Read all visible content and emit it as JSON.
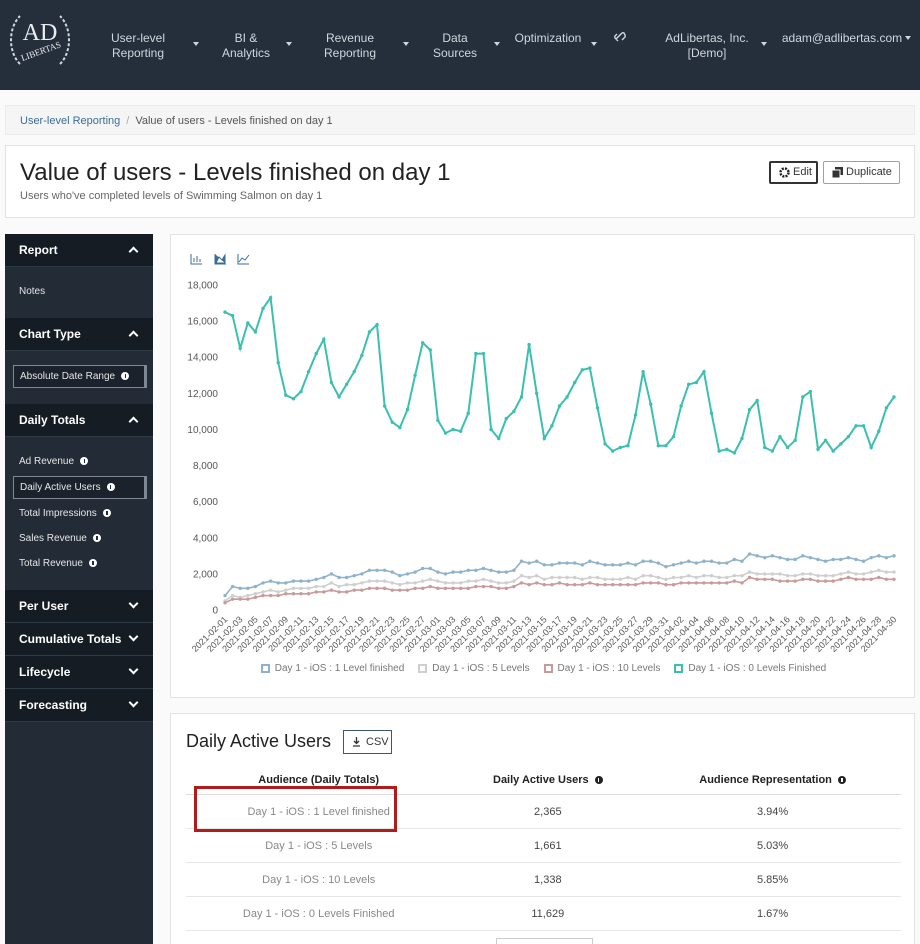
{
  "nav": {
    "logo": [
      "AD",
      "LIBERTAS"
    ],
    "items": [
      "User-level Reporting",
      "BI & Analytics",
      "Revenue Reporting",
      "Data Sources",
      "Optimization"
    ],
    "account": "AdLibertas, Inc. [Demo]",
    "user": "adam@adlibertas.com"
  },
  "breadcrumb": [
    "User-level Reporting",
    "Value of users - Levels finished on day 1"
  ],
  "header": {
    "title": "Value of users - Levels finished on day 1",
    "subtitle": "Users who've completed levels of Swimming Salmon on day 1",
    "buttons": [
      "Edit",
      "Duplicate"
    ]
  },
  "sidebar": [
    {
      "title": "Report",
      "items": [
        "Notes"
      ]
    },
    {
      "title": "Chart Type",
      "items": [
        "Absolute Date Range"
      ],
      "active": 0
    },
    {
      "title": "Daily Totals",
      "items": [
        "Ad Revenue",
        "Daily Active Users",
        "Total Impressions",
        "Sales Revenue",
        "Total Revenue"
      ],
      "active": 1
    },
    {
      "title": "Per User"
    },
    {
      "title": "Cumulative Totals"
    },
    {
      "title": "Lifecycle"
    },
    {
      "title": "Forecasting"
    }
  ],
  "chart_data": {
    "type": "line",
    "categories": [
      "2021-02-01",
      null,
      "2021-02-03",
      null,
      "2021-02-05",
      null,
      "2021-02-07",
      null,
      "2021-02-09",
      null,
      "2021-02-11",
      null,
      "2021-02-13",
      null,
      "2021-02-15",
      null,
      "2021-02-17",
      null,
      "2021-02-19",
      null,
      "2021-02-21",
      null,
      "2021-02-23",
      null,
      "2021-02-25",
      null,
      "2021-02-27",
      null,
      "2021-03-01",
      null,
      "2021-03-03",
      null,
      "2021-03-05",
      null,
      "2021-03-07",
      null,
      "2021-03-09",
      null,
      "2021-03-11",
      null,
      "2021-03-13",
      null,
      "2021-03-15",
      null,
      "2021-03-17",
      null,
      "2021-03-19",
      null,
      "2021-03-21",
      null,
      "2021-03-23",
      null,
      "2021-03-25",
      null,
      "2021-03-27",
      null,
      "2021-03-29",
      null,
      "2021-03-31",
      null,
      "2021-04-02",
      null,
      "2021-04-04",
      null,
      "2021-04-06",
      null,
      "2021-04-08",
      null,
      "2021-04-10",
      null,
      "2021-04-12",
      null,
      "2021-04-14",
      null,
      "2021-04-16",
      null,
      "2021-04-18",
      null,
      "2021-04-20",
      null,
      "2021-04-22",
      null,
      "2021-04-24",
      null,
      "2021-04-26",
      null,
      "2021-04-28",
      null,
      "2021-04-30"
    ],
    "series": [
      {
        "name": "Day 1 - iOS : 1 Level finished",
        "color": "#8fb2cc",
        "values": [
          800,
          1300,
          1200,
          1200,
          1300,
          1500,
          1600,
          1500,
          1500,
          1600,
          1600,
          1600,
          1700,
          1800,
          2000,
          1800,
          1800,
          1900,
          2000,
          2200,
          2200,
          2200,
          2100,
          1900,
          2000,
          2100,
          2300,
          2300,
          2100,
          2000,
          2100,
          2100,
          2200,
          2200,
          2300,
          2200,
          2100,
          2100,
          2200,
          2700,
          2600,
          2700,
          2500,
          2500,
          2600,
          2600,
          2600,
          2500,
          2700,
          2600,
          2500,
          2500,
          2500,
          2600,
          2500,
          2700,
          2700,
          2600,
          2400,
          2500,
          2600,
          2700,
          2600,
          2700,
          2700,
          2600,
          2600,
          2800,
          2700,
          3100,
          3000,
          2900,
          3000,
          2900,
          2800,
          2800,
          3000,
          2900,
          2800,
          2700,
          2800,
          2800,
          2900,
          2800,
          2700,
          2900,
          3000,
          2900,
          3000
        ]
      },
      {
        "name": "Day 1 - iOS : 5 Levels",
        "color": "#cfcfcf",
        "values": [
          500,
          800,
          700,
          800,
          900,
          1000,
          1100,
          1000,
          1100,
          1200,
          1200,
          1200,
          1300,
          1300,
          1500,
          1300,
          1400,
          1400,
          1500,
          1600,
          1600,
          1600,
          1500,
          1400,
          1500,
          1500,
          1600,
          1700,
          1600,
          1500,
          1500,
          1500,
          1600,
          1600,
          1700,
          1600,
          1500,
          1500,
          1600,
          1900,
          1800,
          1900,
          1700,
          1800,
          1800,
          1800,
          1800,
          1700,
          1800,
          1800,
          1700,
          1700,
          1700,
          1800,
          1700,
          1900,
          1900,
          1800,
          1700,
          1800,
          1800,
          1900,
          1800,
          1900,
          1900,
          1800,
          1800,
          1900,
          1900,
          2100,
          2000,
          2000,
          2000,
          2000,
          1900,
          1900,
          2000,
          2000,
          1900,
          1900,
          1900,
          2000,
          2100,
          2000,
          2000,
          2100,
          2200,
          2100,
          2100
        ]
      },
      {
        "name": "Day 1 - iOS : 10 Levels",
        "color": "#c99a9a",
        "values": [
          400,
          600,
          600,
          600,
          700,
          800,
          800,
          800,
          900,
          900,
          900,
          900,
          1000,
          1000,
          1100,
          1000,
          1000,
          1100,
          1100,
          1200,
          1200,
          1200,
          1100,
          1100,
          1100,
          1200,
          1200,
          1300,
          1200,
          1200,
          1200,
          1200,
          1200,
          1300,
          1300,
          1300,
          1200,
          1200,
          1300,
          1500,
          1400,
          1500,
          1400,
          1400,
          1500,
          1400,
          1400,
          1400,
          1500,
          1400,
          1400,
          1400,
          1400,
          1400,
          1400,
          1500,
          1500,
          1500,
          1400,
          1400,
          1500,
          1500,
          1500,
          1500,
          1500,
          1500,
          1500,
          1600,
          1500,
          1800,
          1700,
          1700,
          1700,
          1600,
          1600,
          1600,
          1700,
          1700,
          1600,
          1600,
          1600,
          1700,
          1800,
          1700,
          1700,
          1700,
          1800,
          1700,
          1700
        ]
      },
      {
        "name": "Day 1 - iOS : 0 Levels Finished",
        "color": "#3bbfb0",
        "values": [
          16500,
          16300,
          14500,
          15900,
          15400,
          16700,
          17300,
          13700,
          11900,
          11700,
          12100,
          13200,
          14200,
          15000,
          12600,
          11800,
          12500,
          13200,
          14100,
          15400,
          15800,
          11300,
          10400,
          10100,
          11100,
          13000,
          14800,
          14400,
          10500,
          9800,
          10000,
          9900,
          10900,
          14200,
          14200,
          10000,
          9500,
          10600,
          11000,
          11800,
          14700,
          12000,
          9500,
          10200,
          11300,
          11800,
          12600,
          13300,
          13400,
          11200,
          9200,
          8800,
          9000,
          9100,
          10800,
          13200,
          11400,
          9100,
          9100,
          9600,
          11300,
          12500,
          12600,
          13200,
          10900,
          8800,
          8900,
          8700,
          9500,
          11100,
          11600,
          9000,
          8800,
          9600,
          9000,
          9400,
          11800,
          12100,
          8900,
          9400,
          8800,
          9200,
          9600,
          10200,
          10200,
          9000,
          9900,
          11200,
          11800
        ]
      }
    ],
    "ylim": [
      0,
      18000
    ],
    "yticks": [
      0,
      {
        "value": 2000,
        "label": "2,000"
      },
      {
        "value": 4000,
        "label": "4,000"
      },
      {
        "value": 6000,
        "label": "6,000"
      },
      {
        "value": 8000,
        "label": "8,000"
      },
      {
        "value": 10000,
        "label": "10,000"
      },
      {
        "value": 12000,
        "label": "12,000"
      },
      {
        "value": 14000,
        "label": "14,000"
      },
      {
        "value": 16000,
        "label": "16,000"
      },
      {
        "value": 18000,
        "label": "18,000"
      }
    ],
    "grid": false,
    "legend": "bottom"
  },
  "table": {
    "title": "Daily Active Users",
    "button": "CSV",
    "columns": [
      "Audience (Daily Totals)",
      "Daily Active Users",
      "Audience Representation"
    ],
    "rows": [
      [
        "Day 1 - iOS : 1 Level finished",
        "2,365",
        "3.94%"
      ],
      [
        "Day 1 - iOS : 5 Levels",
        "1,661",
        "5.03%"
      ],
      [
        "Day 1 - iOS : 10 Levels",
        "1,338",
        "5.85%"
      ],
      [
        "Day 1 - iOS : 0 Levels Finished",
        "11,629",
        "1.67%"
      ]
    ]
  }
}
